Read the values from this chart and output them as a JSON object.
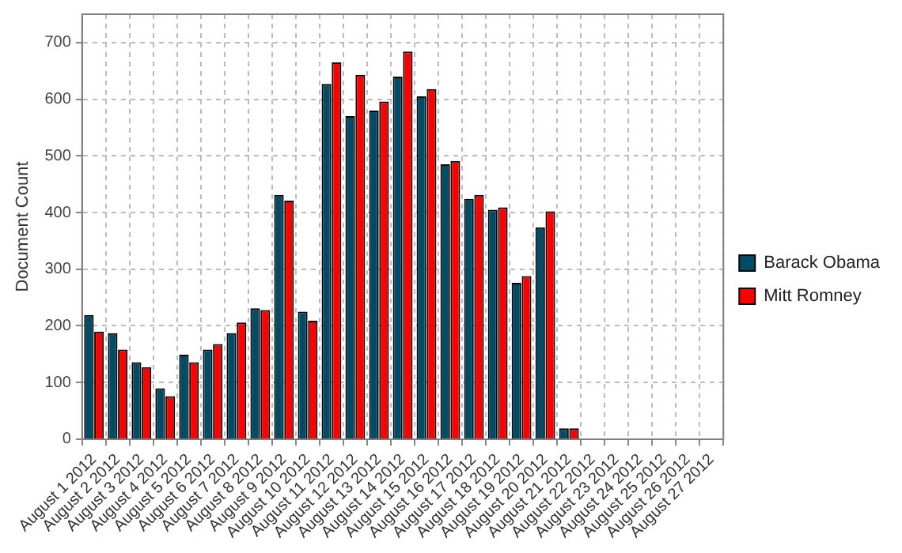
{
  "chart_data": {
    "type": "bar",
    "ylabel": "Document Count",
    "categories": [
      "August 1 2012",
      "August 2 2012",
      "August 3 2012",
      "August 4 2012",
      "August 5 2012",
      "August 6 2012",
      "August 7 2012",
      "August 8 2012",
      "August 9 2012",
      "August 10 2012",
      "August 11 2012",
      "August 12 2012",
      "August 13 2012",
      "August 14 2012",
      "August 15 2012",
      "August 16 2012",
      "August 17 2012",
      "August 18 2012",
      "August 19 2012",
      "August 20 2012",
      "August 21 2012",
      "August 22 2012",
      "August 23 2012",
      "August 24 2012",
      "August 25 2012",
      "August 26 2012",
      "August 27 2012"
    ],
    "series": [
      {
        "name": "Barack Obama",
        "color": "#004c66",
        "values": [
          219,
          187,
          136,
          90,
          149,
          158,
          187,
          231,
          431,
          225,
          627,
          570,
          580,
          640,
          605,
          485,
          424,
          405,
          276,
          374,
          19,
          0,
          0,
          0,
          0,
          0,
          0
        ]
      },
      {
        "name": "Mitt Romney",
        "color": "#ff0000",
        "values": [
          190,
          158,
          127,
          76,
          136,
          168,
          206,
          228,
          421,
          209,
          665,
          643,
          596,
          684,
          618,
          491,
          431,
          409,
          288,
          402,
          19,
          0,
          0,
          0,
          0,
          0,
          0
        ]
      }
    ],
    "ylim": [
      0,
      750
    ],
    "yticks": [
      0,
      100,
      200,
      300,
      400,
      500,
      600,
      700
    ],
    "grid": true,
    "legend": "right"
  }
}
